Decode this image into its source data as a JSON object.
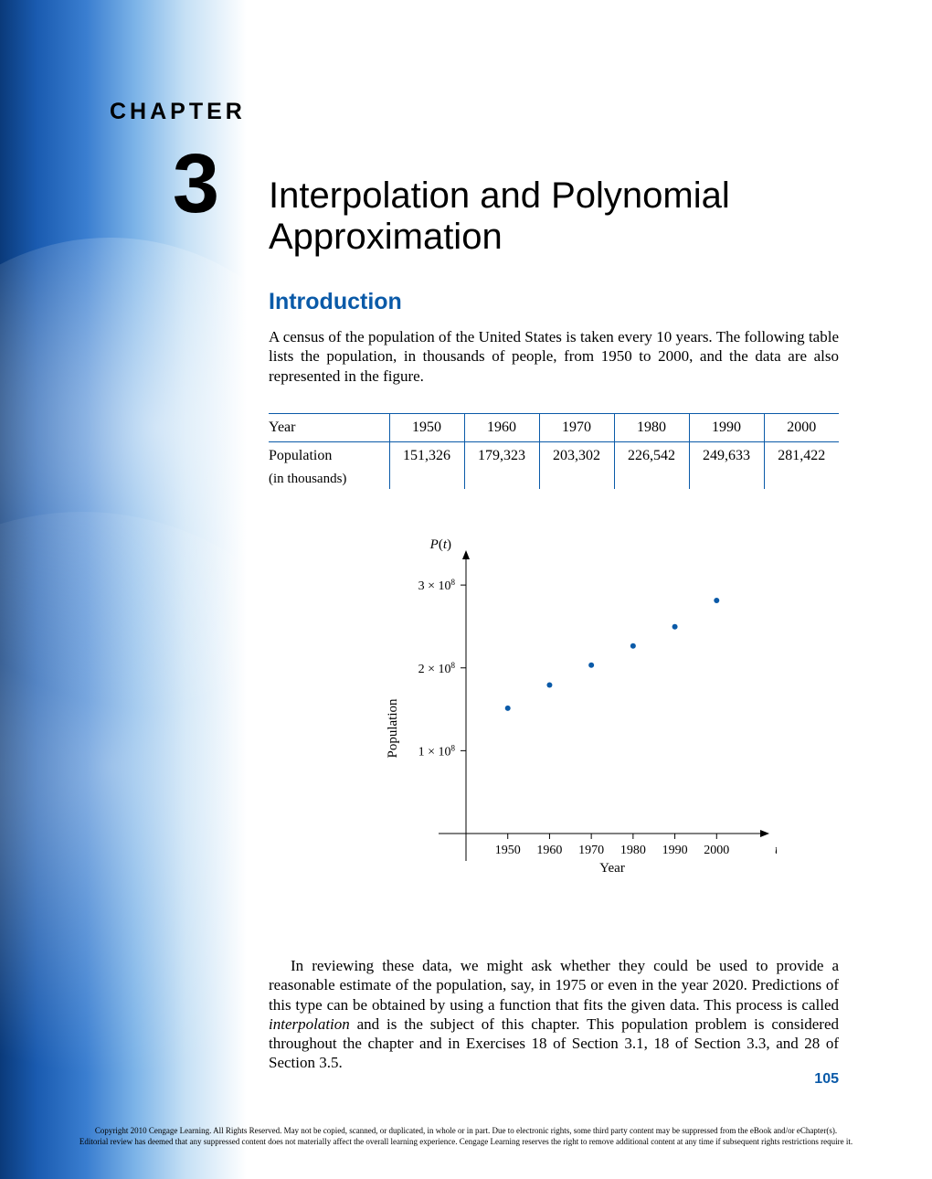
{
  "chapter": {
    "label": "CHAPTER",
    "number": "3",
    "title": "Interpolation and Polynomial Approximation"
  },
  "intro": {
    "heading": "Introduction",
    "text": "A census of the population of the United States is taken every 10 years. The following table lists the population, in thousands of people, from 1950 to 2000, and the data are also represented in the figure."
  },
  "table": {
    "row1_label": "Year",
    "row2_label": "Population",
    "row2_sublabel": "(in thousands)",
    "years": [
      "1950",
      "1960",
      "1970",
      "1980",
      "1990",
      "2000"
    ],
    "populations": [
      "151,326",
      "179,323",
      "203,302",
      "226,542",
      "249,633",
      "281,422"
    ],
    "rule_color": "#0a5aa8"
  },
  "chart": {
    "type": "scatter",
    "y_title": "P(t)",
    "x_axis_var": "t",
    "x_label": "Year",
    "y_label": "Population",
    "point_color": "#0a5aa8",
    "axis_color": "#000000",
    "font_family": "Times New Roman",
    "label_fontsize": 15,
    "tick_fontsize": 14,
    "x_ticks": [
      "1950",
      "1960",
      "1970",
      "1980",
      "1990",
      "2000"
    ],
    "y_ticks": [
      "1 × 10",
      "2 × 10",
      "3 × 10"
    ],
    "y_tick_exponent": "8",
    "points": [
      {
        "x": 1950,
        "y": 151326000
      },
      {
        "x": 1960,
        "y": 179323000
      },
      {
        "x": 1970,
        "y": 203302000
      },
      {
        "x": 1980,
        "y": 226542000
      },
      {
        "x": 1990,
        "y": 249633000
      },
      {
        "x": 2000,
        "y": 281422000
      }
    ],
    "xlim": [
      1940,
      2010
    ],
    "ylim": [
      0,
      320000000
    ],
    "marker_radius": 3
  },
  "body": {
    "para": "In reviewing these data, we might ask whether they could be used to provide a reasonable estimate of the population, say, in 1975 or even in the year 2020. Predictions of this type can be obtained by using a function that fits the given data. This process is called <em>interpolation</em> and is the subject of this chapter. This population problem is considered throughout the chapter and in Exercises 18 of Section 3.1, 18 of Section 3.3, and 28 of Section 3.5."
  },
  "page_number": "105",
  "copyright": {
    "line1": "Copyright 2010 Cengage Learning. All Rights Reserved. May not be copied, scanned, or duplicated, in whole or in part. Due to electronic rights, some third party content may be suppressed from the eBook and/or eChapter(s).",
    "line2": "Editorial review has deemed that any suppressed content does not materially affect the overall learning experience. Cengage Learning reserves the right to remove additional content at any time if subsequent rights restrictions require it."
  }
}
